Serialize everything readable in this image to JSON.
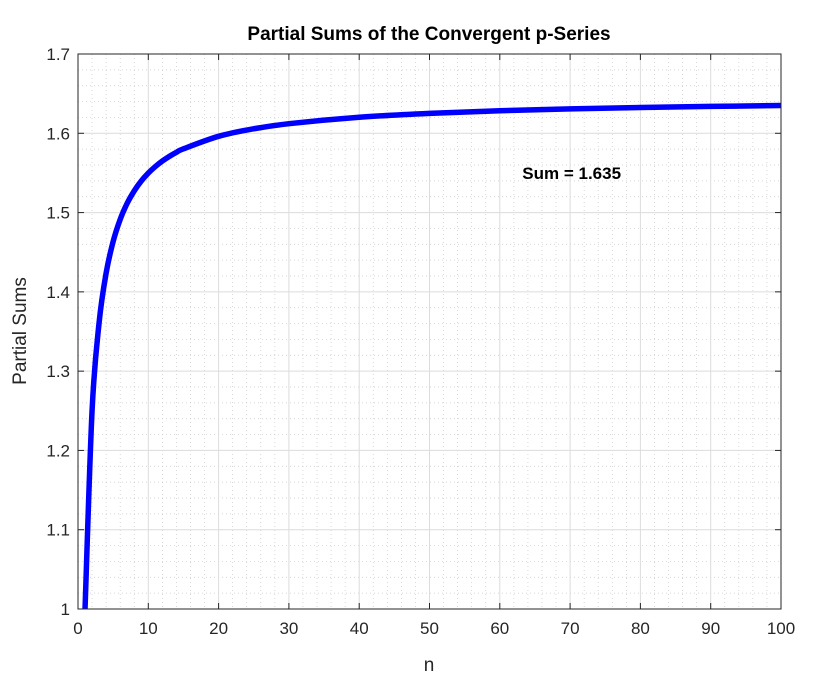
{
  "chart_data": {
    "type": "line",
    "title": "Partial Sums of the Convergent p-Series",
    "xlabel": "n",
    "ylabel": "Partial Sums",
    "xlim": [
      0,
      100
    ],
    "ylim": [
      1,
      1.7
    ],
    "grid": true,
    "minor_grid": true,
    "xticks": [
      "0",
      "10",
      "20",
      "30",
      "40",
      "50",
      "60",
      "70",
      "80",
      "90",
      "100"
    ],
    "yticks": [
      "1",
      "1.1",
      "1.2",
      "1.3",
      "1.4",
      "1.5",
      "1.6",
      "1.7"
    ],
    "series": [
      {
        "name": "Partial sums",
        "color": "#0000ff",
        "x": [
          1,
          2,
          3,
          4,
          5,
          6,
          7,
          8,
          9,
          10,
          11,
          12,
          13,
          14,
          15,
          20,
          25,
          30,
          40,
          50,
          60,
          70,
          80,
          90,
          100
        ],
        "y": [
          1,
          1.25,
          1.3611,
          1.4236,
          1.4636,
          1.4914,
          1.5118,
          1.5274,
          1.5398,
          1.5498,
          1.558,
          1.565,
          1.5709,
          1.576,
          1.5804,
          1.5962,
          1.6057,
          1.6121,
          1.6202,
          1.6251,
          1.6284,
          1.6308,
          1.6325,
          1.6339,
          1.635
        ]
      }
    ],
    "annotations": [
      {
        "text": "Sum = 1.635",
        "x": 63.2,
        "y": 1.55
      }
    ]
  }
}
